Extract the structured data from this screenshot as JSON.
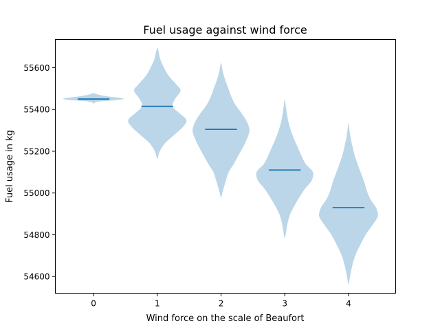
{
  "chart_data": {
    "type": "violin",
    "title": "Fuel usage against wind force",
    "xlabel": "Wind force on the scale of Beaufort",
    "ylabel": "Fuel usage in kg",
    "categories": [
      "0",
      "1",
      "2",
      "3",
      "4"
    ],
    "xlim": [
      -0.6,
      4.74
    ],
    "ylim": [
      54520,
      55735
    ],
    "yticks": [
      54600,
      54800,
      55000,
      55200,
      55400,
      55600
    ],
    "ytick_labels": [
      "54600",
      "54800",
      "55000",
      "55200",
      "55400",
      "55600"
    ],
    "grid": false,
    "colors": {
      "violin": "#1f77b4",
      "median": "#1f77b4"
    },
    "violins": [
      {
        "category": "0",
        "median": 55450,
        "min": 55430,
        "max": 55478,
        "profile": [
          [
            55430,
            0.02
          ],
          [
            55437,
            0.12
          ],
          [
            55443,
            0.6
          ],
          [
            55447,
            0.86
          ],
          [
            55451,
            1.0
          ],
          [
            55456,
            0.86
          ],
          [
            55461,
            0.55
          ],
          [
            55467,
            0.3
          ],
          [
            55472,
            0.14
          ],
          [
            55478,
            0.02
          ]
        ]
      },
      {
        "category": "1",
        "median": 55415,
        "min": 55165,
        "max": 55695,
        "profile": [
          [
            55165,
            0.01
          ],
          [
            55200,
            0.08
          ],
          [
            55240,
            0.26
          ],
          [
            55280,
            0.57
          ],
          [
            55320,
            0.86
          ],
          [
            55350,
            0.95
          ],
          [
            55380,
            0.74
          ],
          [
            55415,
            0.5
          ],
          [
            55450,
            0.58
          ],
          [
            55490,
            0.76
          ],
          [
            55520,
            0.62
          ],
          [
            55560,
            0.38
          ],
          [
            55600,
            0.22
          ],
          [
            55640,
            0.1
          ],
          [
            55670,
            0.05
          ],
          [
            55695,
            0.01
          ]
        ]
      },
      {
        "category": "2",
        "median": 55305,
        "min": 54980,
        "max": 55620,
        "profile": [
          [
            54980,
            0.01
          ],
          [
            55010,
            0.06
          ],
          [
            55050,
            0.14
          ],
          [
            55100,
            0.25
          ],
          [
            55140,
            0.42
          ],
          [
            55180,
            0.57
          ],
          [
            55220,
            0.72
          ],
          [
            55260,
            0.85
          ],
          [
            55300,
            0.93
          ],
          [
            55340,
            0.85
          ],
          [
            55380,
            0.68
          ],
          [
            55420,
            0.48
          ],
          [
            55460,
            0.34
          ],
          [
            55500,
            0.24
          ],
          [
            55540,
            0.14
          ],
          [
            55580,
            0.06
          ],
          [
            55620,
            0.01
          ]
        ]
      },
      {
        "category": "3",
        "median": 55110,
        "min": 54785,
        "max": 55445,
        "profile": [
          [
            54785,
            0.01
          ],
          [
            54820,
            0.05
          ],
          [
            54860,
            0.1
          ],
          [
            54900,
            0.18
          ],
          [
            54940,
            0.32
          ],
          [
            54980,
            0.48
          ],
          [
            55020,
            0.66
          ],
          [
            55060,
            0.88
          ],
          [
            55100,
            0.92
          ],
          [
            55140,
            0.68
          ],
          [
            55180,
            0.54
          ],
          [
            55220,
            0.42
          ],
          [
            55260,
            0.3
          ],
          [
            55300,
            0.2
          ],
          [
            55340,
            0.12
          ],
          [
            55380,
            0.07
          ],
          [
            55420,
            0.03
          ],
          [
            55445,
            0.01
          ]
        ]
      },
      {
        "category": "4",
        "median": 54930,
        "min": 54565,
        "max": 55330,
        "profile": [
          [
            54565,
            0.01
          ],
          [
            54600,
            0.05
          ],
          [
            54650,
            0.12
          ],
          [
            54700,
            0.22
          ],
          [
            54750,
            0.38
          ],
          [
            54800,
            0.56
          ],
          [
            54850,
            0.8
          ],
          [
            54890,
            0.96
          ],
          [
            54930,
            0.9
          ],
          [
            54970,
            0.72
          ],
          [
            55010,
            0.6
          ],
          [
            55050,
            0.52
          ],
          [
            55090,
            0.42
          ],
          [
            55130,
            0.32
          ],
          [
            55180,
            0.2
          ],
          [
            55230,
            0.12
          ],
          [
            55280,
            0.05
          ],
          [
            55330,
            0.01
          ]
        ]
      }
    ]
  }
}
